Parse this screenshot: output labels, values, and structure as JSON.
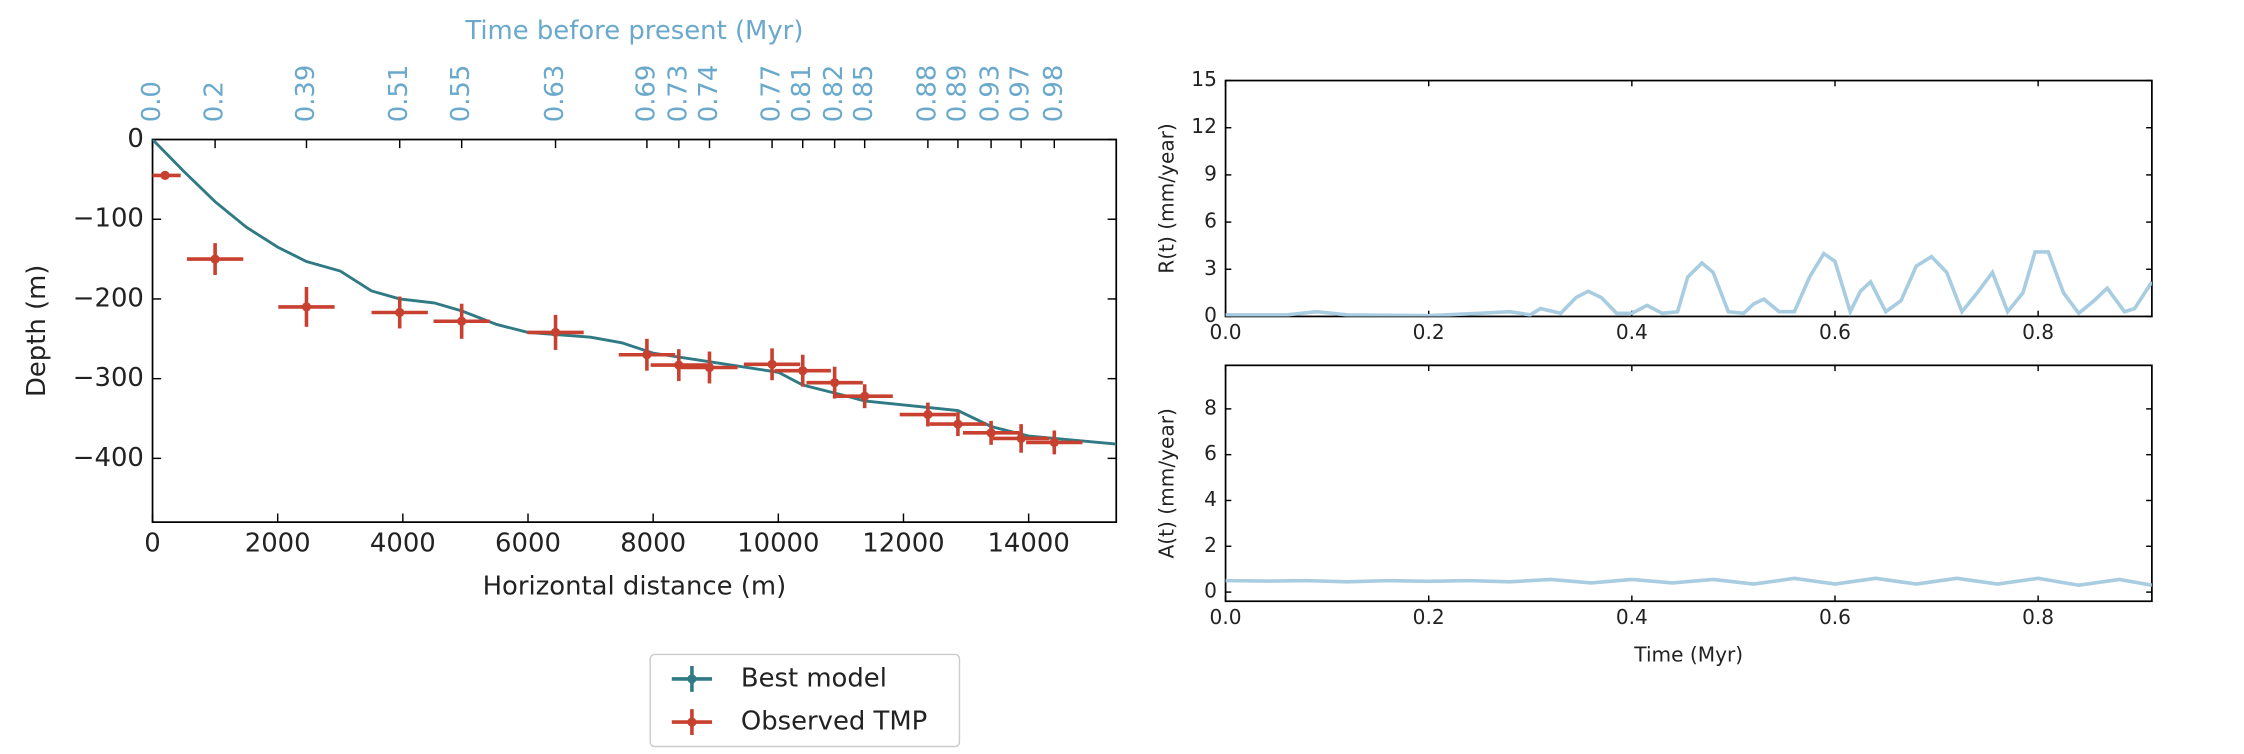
{
  "chart_data": [
    {
      "type": "profile",
      "xlabel": "Horizontal distance (m)",
      "ylabel": "Depth (m)",
      "x2label": "Time before present (Myr)",
      "xlim": [
        0,
        15400
      ],
      "ylim": [
        -480,
        0
      ],
      "xticks": [
        0,
        2000,
        4000,
        6000,
        8000,
        10000,
        12000,
        14000
      ],
      "yticks": [
        {
          "value": -400,
          "label": "−400"
        },
        {
          "value": -300,
          "label": "−300"
        },
        {
          "value": -200,
          "label": "−200"
        },
        {
          "value": -100,
          "label": "−100"
        },
        0
      ],
      "x2ticks": [
        {
          "value": 0,
          "label": "0.0"
        },
        {
          "value": 1000,
          "label": "0.2"
        },
        {
          "value": 2460,
          "label": "0.39"
        },
        {
          "value": 3950,
          "label": "0.51"
        },
        {
          "value": 4940,
          "label": "0.55"
        },
        {
          "value": 6440,
          "label": "0.63"
        },
        {
          "value": 7900,
          "label": "0.69"
        },
        {
          "value": 8410,
          "label": "0.73"
        },
        {
          "value": 8900,
          "label": "0.74"
        },
        {
          "value": 9900,
          "label": "0.77"
        },
        {
          "value": 10390,
          "label": "0.81"
        },
        {
          "value": 10900,
          "label": "0.82"
        },
        {
          "value": 11380,
          "label": "0.85"
        },
        {
          "value": 12390,
          "label": "0.88"
        },
        {
          "value": 12870,
          "label": "0.89"
        },
        {
          "value": 13400,
          "label": "0.93"
        },
        {
          "value": 13880,
          "label": "0.97"
        },
        {
          "value": 14410,
          "label": "0.98"
        }
      ],
      "x2color": "#6aa8cc",
      "legend": "below",
      "series": [
        {
          "name": "Best model",
          "color": "#2f7a84",
          "x": [
            0,
            500,
            1000,
            1500,
            2000,
            2460,
            3000,
            3500,
            3950,
            4500,
            4940,
            5500,
            6000,
            7000,
            7500,
            8000,
            9000,
            10000,
            10390,
            11000,
            11380,
            12000,
            12870,
            13400,
            14000,
            15400
          ],
          "values": [
            0,
            -40,
            -78,
            -110,
            -135,
            -153,
            -165,
            -190,
            -200,
            -205,
            -215,
            -232,
            -242,
            -248,
            -255,
            -268,
            -280,
            -292,
            -308,
            -320,
            -328,
            -333,
            -340,
            -360,
            -372,
            -382
          ]
        },
        {
          "name": "Observed TMP",
          "color": "#c8402f",
          "x": [
            200,
            1000,
            2460,
            3950,
            4940,
            6440,
            7900,
            8410,
            8900,
            9900,
            10390,
            10900,
            11380,
            12390,
            12870,
            13400,
            13880,
            14410
          ],
          "values": [
            -45,
            -150,
            -210,
            -217,
            -228,
            -242,
            -270,
            -283,
            -286,
            -282,
            -290,
            -305,
            -322,
            -345,
            -357,
            -368,
            -375,
            -380
          ],
          "xerr": [
            250,
            450,
            450,
            450,
            450,
            450,
            450,
            450,
            450,
            450,
            450,
            450,
            450,
            450,
            450,
            450,
            450,
            450
          ],
          "yerr": [
            5,
            20,
            25,
            20,
            22,
            22,
            20,
            20,
            20,
            20,
            20,
            20,
            15,
            15,
            15,
            15,
            18,
            15
          ]
        }
      ]
    },
    {
      "type": "line",
      "ylabel": "R(t) (mm/year)",
      "color": "#a8cce0",
      "xlim": [
        0,
        0.912
      ],
      "ylim": [
        0,
        15
      ],
      "xticks": [
        {
          "value": 0,
          "label": "0.0"
        },
        0.2,
        0.4,
        0.6,
        0.8
      ],
      "yticks": [
        0,
        3,
        6,
        9,
        12,
        15
      ],
      "x": [
        0,
        0.06,
        0.09,
        0.12,
        0.2,
        0.25,
        0.28,
        0.3,
        0.31,
        0.33,
        0.345,
        0.357,
        0.37,
        0.385,
        0.4,
        0.415,
        0.43,
        0.445,
        0.455,
        0.469,
        0.48,
        0.495,
        0.51,
        0.52,
        0.53,
        0.545,
        0.56,
        0.575,
        0.589,
        0.6,
        0.615,
        0.625,
        0.635,
        0.65,
        0.665,
        0.68,
        0.695,
        0.71,
        0.725,
        0.74,
        0.755,
        0.77,
        0.785,
        0.797,
        0.81,
        0.825,
        0.84,
        0.855,
        0.868,
        0.885,
        0.895,
        0.912
      ],
      "values": [
        0.1,
        0.1,
        0.3,
        0.1,
        0.05,
        0.2,
        0.3,
        0.1,
        0.5,
        0.2,
        1.2,
        1.6,
        1.2,
        0.2,
        0.2,
        0.7,
        0.2,
        0.3,
        2.5,
        3.4,
        2.8,
        0.3,
        0.2,
        0.8,
        1.1,
        0.3,
        0.3,
        2.5,
        4.0,
        3.5,
        0.3,
        1.6,
        2.2,
        0.3,
        1.0,
        3.2,
        3.8,
        2.8,
        0.3,
        1.5,
        2.8,
        0.3,
        1.5,
        4.1,
        4.1,
        1.5,
        0.2,
        1.0,
        1.8,
        0.3,
        0.5,
        2.2
      ]
    },
    {
      "type": "line",
      "ylabel": "A(t) (mm/year)",
      "xlabel": "Time (Myr)",
      "color": "#a8cce0",
      "xlim": [
        0,
        0.912
      ],
      "ylim": [
        -0.4,
        9.9
      ],
      "xticks": [
        {
          "value": 0,
          "label": "0.0"
        },
        0.2,
        0.4,
        0.6,
        0.8
      ],
      "yticks": [
        0,
        2,
        4,
        6,
        8
      ],
      "x": [
        0,
        0.04,
        0.08,
        0.12,
        0.16,
        0.2,
        0.24,
        0.28,
        0.32,
        0.36,
        0.4,
        0.44,
        0.48,
        0.52,
        0.56,
        0.6,
        0.64,
        0.68,
        0.72,
        0.76,
        0.8,
        0.84,
        0.88,
        0.912
      ],
      "values": [
        0.5,
        0.48,
        0.5,
        0.45,
        0.5,
        0.47,
        0.5,
        0.45,
        0.55,
        0.4,
        0.55,
        0.4,
        0.55,
        0.35,
        0.6,
        0.35,
        0.6,
        0.35,
        0.6,
        0.35,
        0.6,
        0.3,
        0.55,
        0.3
      ]
    }
  ]
}
